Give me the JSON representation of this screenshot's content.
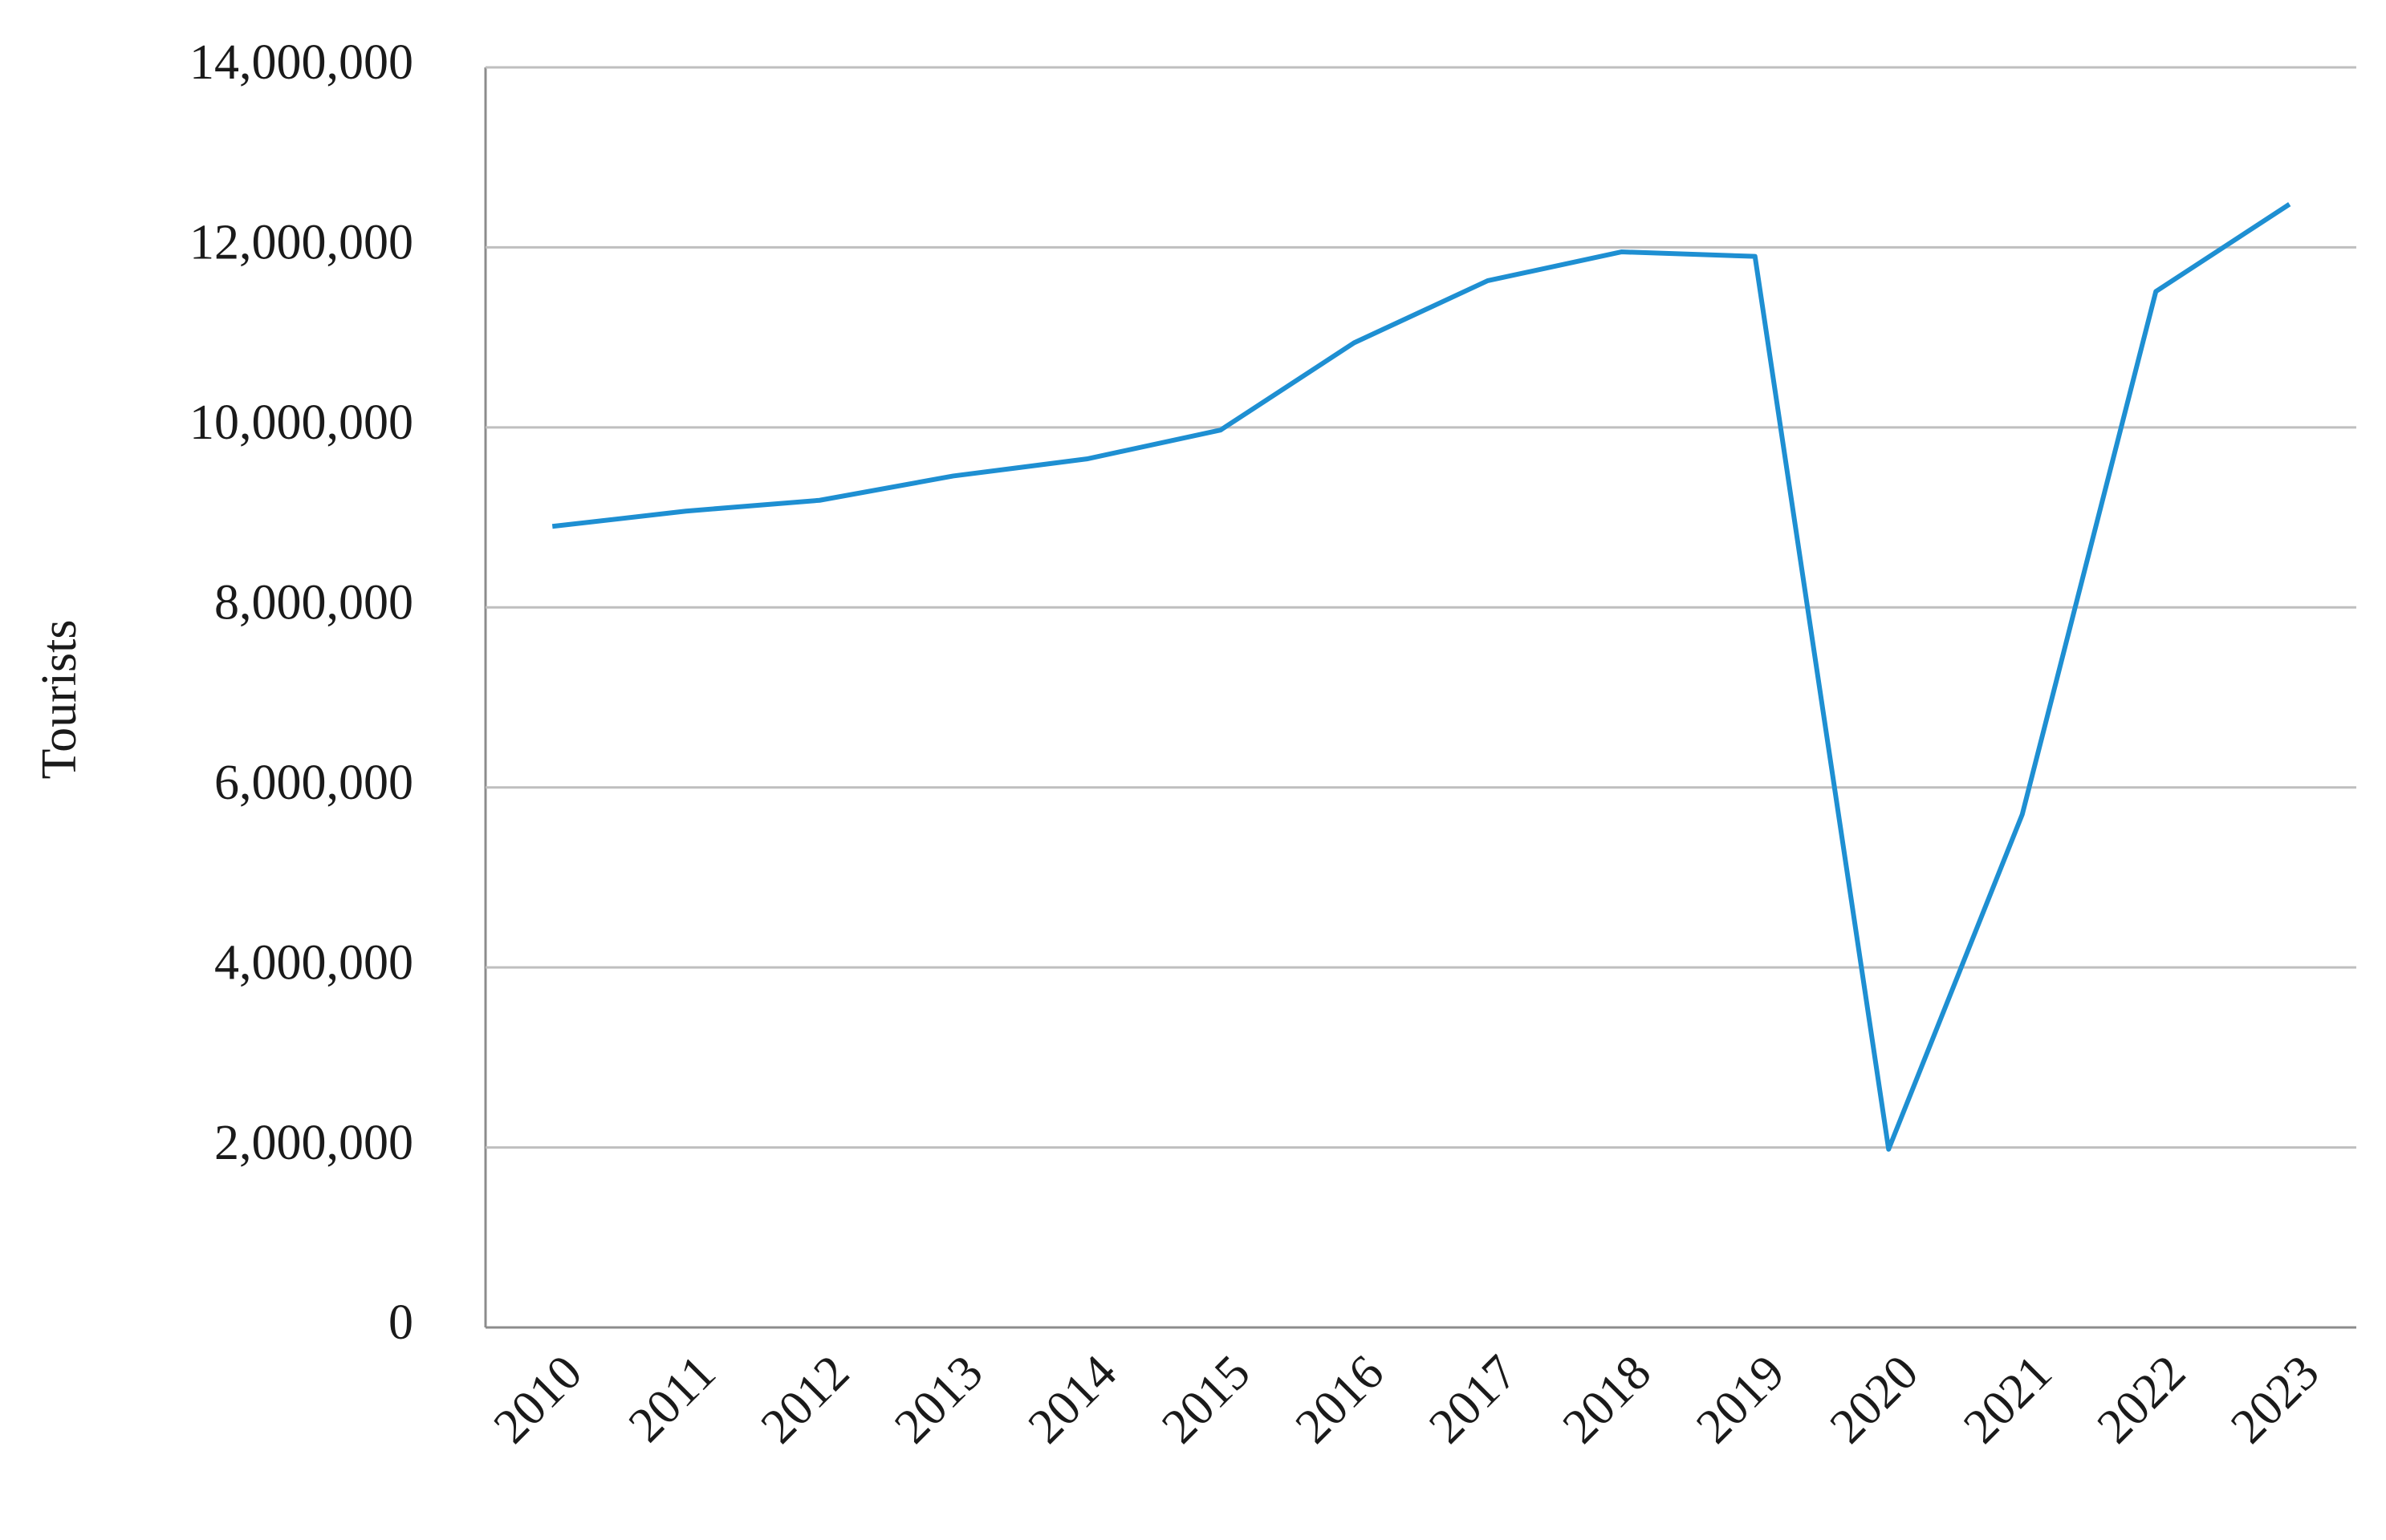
{
  "chart_data": {
    "type": "line",
    "y_label": "Tourists",
    "categories": [
      "2010",
      "2011",
      "2012",
      "2013",
      "2014",
      "2015",
      "2016",
      "2017",
      "2018",
      "2019",
      "2020",
      "2021",
      "2022",
      "2023"
    ],
    "series": [
      {
        "name": "Tourists",
        "color": "#1e8fd2",
        "values": [
          8900000,
          9070000,
          9190000,
          9460000,
          9650000,
          9970000,
          10940000,
          11630000,
          11950000,
          11900000,
          1980000,
          5700000,
          11510000,
          12480000
        ]
      }
    ],
    "ylim": [
      0,
      14000000
    ],
    "yticks": [
      0,
      {
        "value": 2000000,
        "label": "2,000,000"
      },
      {
        "value": 4000000,
        "label": "4,000,000"
      },
      {
        "value": 6000000,
        "label": "6,000,000"
      },
      {
        "value": 8000000,
        "label": "8,000,000"
      },
      {
        "value": 10000000,
        "label": "10,000,000"
      },
      {
        "value": 12000000,
        "label": "12,000,000"
      },
      {
        "value": 14000000,
        "label": "14,000,000"
      }
    ],
    "grid": true
  }
}
